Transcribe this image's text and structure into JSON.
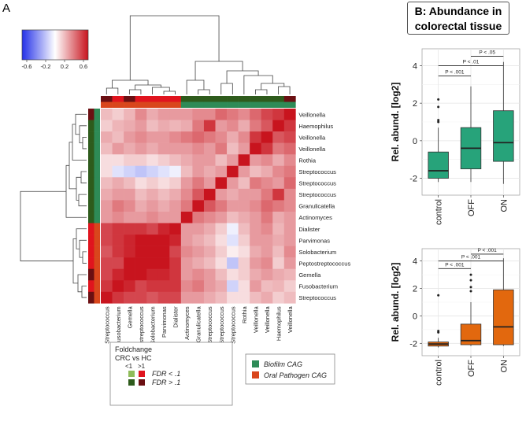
{
  "panel_a_label": "A",
  "panel_b_title_line1": "B: Abundance in",
  "panel_b_title_line2": "colorectal tissue",
  "colorbar": {
    "ticks": [
      "-0.6",
      "-0.2",
      "0.2",
      "0.6"
    ],
    "min": -0.7,
    "max": 0.7
  },
  "legend_foldchange": {
    "title": "Foldchange",
    "subtitle": "CRC vs HC",
    "lt_label": "<1",
    "gt_label": ">1",
    "fdr_low": "FDR < .1",
    "fdr_high": "FDR > .1",
    "colors": {
      "lt_sig": "#8fbc5a",
      "gt_sig": "#e0141e",
      "lt_ns": "#2e5b1c",
      "gt_ns": "#6b0f12"
    }
  },
  "legend_cag": {
    "biofilm": "Biofilm CAG",
    "oral": "Oral Pathogen CAG",
    "biofilm_color": "#2e8b57",
    "oral_color": "#d9461c"
  },
  "chart_data": [
    {
      "type": "heatmap",
      "title": "",
      "color_scale": [
        "#2431e8",
        "#ffffff",
        "#c8141e"
      ],
      "value_range": [
        -0.7,
        0.7
      ],
      "rows": [
        "Veillonella",
        "Haemophilus",
        "Veillonella",
        "Veillonella",
        "Rothia",
        "Streptococcus",
        "Streptococcus",
        "Streptococcus",
        "Granulicatella",
        "Actinomyces",
        "Dialister",
        "Parvimonas",
        "Solobacterium",
        "Peptostreptococcus",
        "Gemella",
        "Fusobacterium",
        "Streptococcus"
      ],
      "columns": [
        "Streptococcus",
        "Fusobacterium",
        "Gemella",
        "Peptostreptococcus",
        "Solobacterium",
        "Parvimonas",
        "Dialister",
        "Actinomyces",
        "Granulicatella",
        "Streptococcus",
        "Streptococcus",
        "Streptococcus",
        "Rothia",
        "Veillonella",
        "Veillonella",
        "Haemophilus",
        "Veillonella"
      ],
      "row_cag": [
        "biofilm",
        "biofilm",
        "biofilm",
        "biofilm",
        "biofilm",
        "biofilm",
        "biofilm",
        "biofilm",
        "biofilm",
        "biofilm",
        "oral",
        "oral",
        "oral",
        "oral",
        "oral",
        "oral",
        "oral"
      ],
      "row_foldchange": [
        "gt_ns",
        "lt_ns",
        "lt_ns",
        "lt_ns",
        "lt_ns",
        "lt_ns",
        "lt_ns",
        "lt_ns",
        "lt_ns",
        "lt_ns",
        "gt_sig",
        "gt_sig",
        "gt_sig",
        "gt_sig",
        "gt_ns",
        "gt_sig",
        "gt_ns"
      ],
      "values": [
        [
          0.2,
          0.15,
          0.22,
          0.35,
          0.25,
          0.3,
          0.3,
          0.3,
          0.35,
          0.35,
          0.45,
          0.4,
          0.35,
          0.45,
          0.55,
          0.6,
          1.0
        ],
        [
          0.15,
          0.22,
          0.25,
          0.3,
          0.2,
          0.25,
          0.22,
          0.25,
          0.4,
          0.6,
          0.3,
          0.35,
          0.25,
          0.4,
          0.5,
          1.0,
          0.6
        ],
        [
          0.25,
          0.2,
          0.3,
          0.35,
          0.3,
          0.3,
          0.35,
          0.4,
          0.45,
          0.4,
          0.35,
          0.25,
          0.35,
          0.6,
          1.0,
          0.5,
          0.55
        ],
        [
          0.2,
          0.3,
          0.25,
          0.3,
          0.25,
          0.3,
          0.3,
          0.3,
          0.35,
          0.3,
          0.4,
          0.2,
          0.3,
          1.0,
          0.6,
          0.4,
          0.45
        ],
        [
          0.1,
          0.1,
          0.15,
          0.15,
          0.1,
          0.15,
          0.2,
          0.25,
          0.3,
          0.3,
          0.2,
          0.3,
          1.0,
          0.3,
          0.35,
          0.25,
          0.35
        ],
        [
          0.1,
          -0.1,
          -0.15,
          -0.2,
          -0.15,
          -0.1,
          -0.05,
          0.2,
          0.3,
          0.25,
          0.3,
          1.0,
          0.3,
          0.2,
          0.25,
          0.35,
          0.4
        ],
        [
          0.2,
          0.25,
          0.2,
          0.1,
          0.15,
          0.1,
          0.15,
          0.3,
          0.4,
          0.3,
          1.0,
          0.3,
          0.2,
          0.4,
          0.35,
          0.3,
          0.45
        ],
        [
          0.25,
          0.3,
          0.3,
          0.2,
          0.25,
          0.2,
          0.25,
          0.35,
          0.5,
          1.0,
          0.3,
          0.25,
          0.3,
          0.3,
          0.4,
          0.6,
          0.35
        ],
        [
          0.3,
          0.4,
          0.35,
          0.25,
          0.3,
          0.25,
          0.3,
          0.4,
          1.0,
          0.5,
          0.4,
          0.3,
          0.3,
          0.35,
          0.45,
          0.4,
          0.35
        ],
        [
          0.3,
          0.35,
          0.3,
          0.3,
          0.35,
          0.3,
          0.3,
          1.0,
          0.4,
          0.35,
          0.3,
          0.2,
          0.25,
          0.3,
          0.4,
          0.25,
          0.3
        ],
        [
          0.55,
          0.6,
          0.6,
          0.6,
          0.55,
          0.65,
          1.0,
          0.3,
          0.3,
          0.25,
          0.15,
          -0.05,
          0.2,
          0.3,
          0.35,
          0.22,
          0.3
        ],
        [
          0.55,
          0.6,
          0.65,
          0.7,
          0.7,
          1.0,
          0.65,
          0.3,
          0.25,
          0.2,
          0.1,
          -0.1,
          0.15,
          0.3,
          0.3,
          0.25,
          0.3
        ],
        [
          0.5,
          0.6,
          0.65,
          0.7,
          1.0,
          0.7,
          0.55,
          0.35,
          0.3,
          0.25,
          0.15,
          0.05,
          0.1,
          0.25,
          0.3,
          0.2,
          0.35
        ],
        [
          0.55,
          0.55,
          0.7,
          1.0,
          0.7,
          0.7,
          0.6,
          0.3,
          0.25,
          0.2,
          0.1,
          -0.2,
          0.15,
          0.3,
          0.35,
          0.15,
          0.3
        ],
        [
          0.55,
          0.65,
          1.0,
          0.7,
          0.65,
          0.65,
          0.6,
          0.3,
          0.35,
          0.3,
          0.2,
          0.1,
          0.15,
          0.25,
          0.3,
          0.25,
          0.22
        ],
        [
          0.6,
          1.0,
          0.65,
          0.55,
          0.6,
          0.6,
          0.6,
          0.35,
          0.4,
          0.3,
          0.25,
          -0.15,
          0.1,
          0.3,
          0.2,
          0.22,
          0.15
        ],
        [
          1.0,
          0.6,
          0.55,
          0.55,
          0.5,
          0.55,
          0.55,
          0.3,
          0.3,
          0.25,
          0.2,
          0.1,
          0.1,
          0.2,
          0.25,
          0.15,
          0.2
        ]
      ]
    },
    {
      "type": "box",
      "title": "Abundance in colorectal tissue (top)",
      "categories": [
        "control",
        "OFF",
        "ON"
      ],
      "ylabel": "Rel. abund. [log2]",
      "ylim": [
        -2.9,
        4.9
      ],
      "yticks": [
        "-2",
        "0",
        "2",
        "4"
      ],
      "color": "#27a37a",
      "boxes": [
        {
          "min": -2.2,
          "q1": -2.0,
          "median": -1.6,
          "q3": -0.6,
          "max": 0.7,
          "outliers": [
            1.0,
            1.1,
            1.8,
            2.2
          ]
        },
        {
          "min": -2.2,
          "q1": -1.5,
          "median": -0.4,
          "q3": 0.7,
          "max": 2.9,
          "outliers": []
        },
        {
          "min": -2.3,
          "q1": -1.1,
          "median": -0.1,
          "q3": 1.6,
          "max": 4.2,
          "outliers": []
        }
      ],
      "significance": [
        {
          "from": 0,
          "to": 1,
          "label": "P < .001"
        },
        {
          "from": 0,
          "to": 2,
          "label": "P < .01"
        },
        {
          "from": 1,
          "to": 2,
          "label": "P < .05"
        }
      ]
    },
    {
      "type": "box",
      "title": "Abundance in colorectal tissue (bottom)",
      "categories": [
        "control",
        "OFF",
        "ON"
      ],
      "ylabel": "Rel. abund. [log2]",
      "ylim": [
        -2.9,
        4.9
      ],
      "yticks": [
        "-2",
        "0",
        "2",
        "4"
      ],
      "color": "#e2680e",
      "boxes": [
        {
          "min": -2.3,
          "q1": -2.2,
          "median": -2.05,
          "q3": -1.9,
          "max": -1.6,
          "outliers": [
            -1.2,
            -1.1,
            1.5
          ]
        },
        {
          "min": -2.2,
          "q1": -2.1,
          "median": -1.8,
          "q3": -0.6,
          "max": 1.0,
          "outliers": [
            1.8,
            2.1,
            2.6,
            3.0
          ]
        },
        {
          "min": -2.2,
          "q1": -2.1,
          "median": -0.8,
          "q3": 1.9,
          "max": 4.2,
          "outliers": []
        }
      ],
      "significance": [
        {
          "from": 0,
          "to": 1,
          "label": "P < .001"
        },
        {
          "from": 0,
          "to": 2,
          "label": "P < .001"
        },
        {
          "from": 1,
          "to": 2,
          "label": "P < .001"
        }
      ]
    }
  ]
}
